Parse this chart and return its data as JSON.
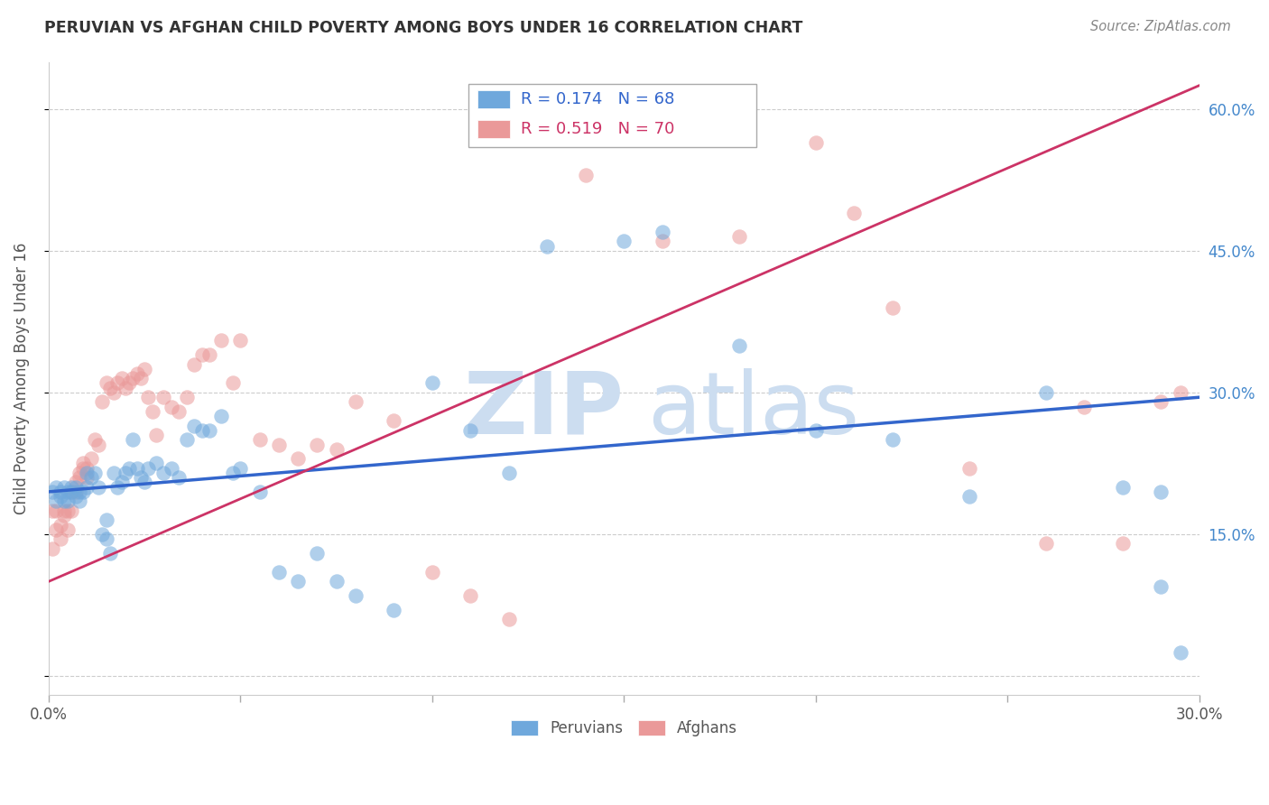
{
  "title": "PERUVIAN VS AFGHAN CHILD POVERTY AMONG BOYS UNDER 16 CORRELATION CHART",
  "source": "Source: ZipAtlas.com",
  "ylabel": "Child Poverty Among Boys Under 16",
  "xlim": [
    0.0,
    0.3
  ],
  "ylim": [
    -0.02,
    0.65
  ],
  "peruvian_color": "#6fa8dc",
  "afghan_color": "#ea9999",
  "peruvian_line_color": "#3366cc",
  "afghan_line_color": "#cc3366",
  "R_peruvian": 0.174,
  "N_peruvian": 68,
  "R_afghan": 0.519,
  "N_afghan": 70,
  "watermark_color": "#ccddf0",
  "right_ytick_color": "#4488cc",
  "peruvian_line_x": [
    0.0,
    0.3
  ],
  "peruvian_line_y": [
    0.195,
    0.295
  ],
  "afghan_line_x": [
    0.0,
    0.3
  ],
  "afghan_line_y": [
    0.1,
    0.625
  ],
  "peruvian_x": [
    0.001,
    0.002,
    0.002,
    0.003,
    0.003,
    0.004,
    0.004,
    0.005,
    0.005,
    0.006,
    0.006,
    0.007,
    0.007,
    0.008,
    0.008,
    0.009,
    0.01,
    0.01,
    0.011,
    0.012,
    0.013,
    0.014,
    0.015,
    0.015,
    0.016,
    0.017,
    0.018,
    0.019,
    0.02,
    0.021,
    0.022,
    0.023,
    0.024,
    0.025,
    0.026,
    0.028,
    0.03,
    0.032,
    0.034,
    0.036,
    0.038,
    0.04,
    0.042,
    0.045,
    0.048,
    0.05,
    0.055,
    0.06,
    0.065,
    0.07,
    0.075,
    0.08,
    0.09,
    0.1,
    0.11,
    0.12,
    0.13,
    0.15,
    0.16,
    0.18,
    0.2,
    0.22,
    0.24,
    0.26,
    0.28,
    0.29,
    0.29,
    0.295
  ],
  "peruvian_y": [
    0.195,
    0.185,
    0.2,
    0.19,
    0.195,
    0.185,
    0.2,
    0.195,
    0.185,
    0.2,
    0.195,
    0.19,
    0.2,
    0.195,
    0.185,
    0.195,
    0.2,
    0.215,
    0.21,
    0.215,
    0.2,
    0.15,
    0.145,
    0.165,
    0.13,
    0.215,
    0.2,
    0.205,
    0.215,
    0.22,
    0.25,
    0.22,
    0.21,
    0.205,
    0.22,
    0.225,
    0.215,
    0.22,
    0.21,
    0.25,
    0.265,
    0.26,
    0.26,
    0.275,
    0.215,
    0.22,
    0.195,
    0.11,
    0.1,
    0.13,
    0.1,
    0.085,
    0.07,
    0.31,
    0.26,
    0.215,
    0.455,
    0.46,
    0.47,
    0.35,
    0.26,
    0.25,
    0.19,
    0.3,
    0.2,
    0.195,
    0.095,
    0.025
  ],
  "afghan_x": [
    0.001,
    0.001,
    0.002,
    0.002,
    0.003,
    0.003,
    0.004,
    0.004,
    0.005,
    0.005,
    0.006,
    0.006,
    0.007,
    0.007,
    0.008,
    0.008,
    0.009,
    0.009,
    0.01,
    0.01,
    0.011,
    0.012,
    0.013,
    0.014,
    0.015,
    0.016,
    0.017,
    0.018,
    0.019,
    0.02,
    0.021,
    0.022,
    0.023,
    0.024,
    0.025,
    0.026,
    0.027,
    0.028,
    0.03,
    0.032,
    0.034,
    0.036,
    0.038,
    0.04,
    0.042,
    0.045,
    0.048,
    0.05,
    0.055,
    0.06,
    0.065,
    0.07,
    0.075,
    0.08,
    0.09,
    0.1,
    0.11,
    0.12,
    0.14,
    0.16,
    0.18,
    0.2,
    0.21,
    0.22,
    0.24,
    0.26,
    0.27,
    0.28,
    0.29,
    0.295
  ],
  "afghan_y": [
    0.175,
    0.135,
    0.175,
    0.155,
    0.16,
    0.145,
    0.17,
    0.175,
    0.155,
    0.175,
    0.175,
    0.195,
    0.195,
    0.205,
    0.21,
    0.215,
    0.22,
    0.225,
    0.21,
    0.22,
    0.23,
    0.25,
    0.245,
    0.29,
    0.31,
    0.305,
    0.3,
    0.31,
    0.315,
    0.305,
    0.31,
    0.315,
    0.32,
    0.315,
    0.325,
    0.295,
    0.28,
    0.255,
    0.295,
    0.285,
    0.28,
    0.295,
    0.33,
    0.34,
    0.34,
    0.355,
    0.31,
    0.355,
    0.25,
    0.245,
    0.23,
    0.245,
    0.24,
    0.29,
    0.27,
    0.11,
    0.085,
    0.06,
    0.53,
    0.46,
    0.465,
    0.565,
    0.49,
    0.39,
    0.22,
    0.14,
    0.285,
    0.14,
    0.29,
    0.3
  ]
}
